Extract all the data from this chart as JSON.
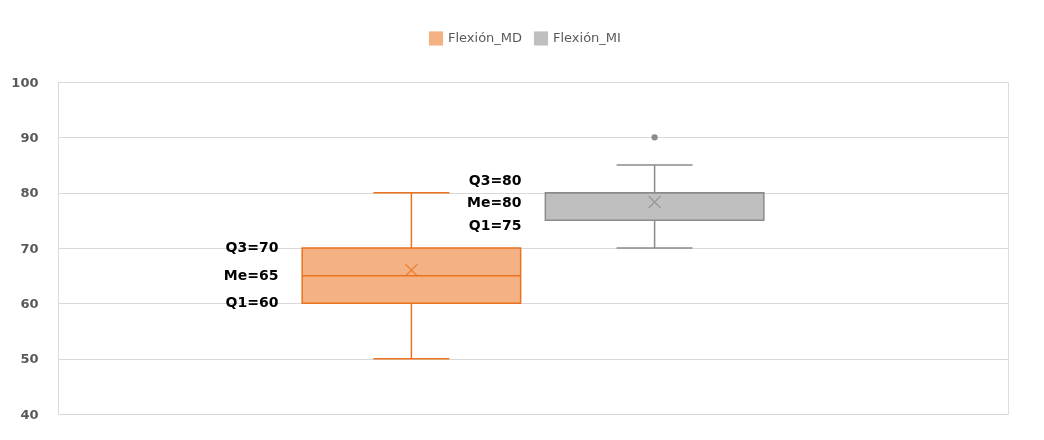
{
  "chart_data": {
    "type": "box",
    "categories": [
      null
    ],
    "series": [
      {
        "name": "Flexión_MD",
        "color": "#f4b183",
        "boxes": [
          {
            "low": 50,
            "q1": 60,
            "median": 65,
            "q3": 70,
            "high": 80,
            "mean": 66
          }
        ]
      },
      {
        "name": "Flexión_MI",
        "color": "#bfbfbf",
        "boxes": [
          {
            "low": 70,
            "q1": 75,
            "median": 80,
            "q3": 80,
            "high": 85,
            "mean": 78.3,
            "outliers": [
              90
            ]
          }
        ]
      }
    ],
    "annotations": [
      "Q3=70",
      "Me=65",
      "Q1=60",
      "Q3=80",
      "Me=80",
      "Q1=75"
    ],
    "ylim": [
      40,
      100
    ],
    "yticks": [
      40,
      50,
      60,
      70,
      80,
      90,
      100
    ],
    "grid": "y",
    "legend": "top"
  }
}
